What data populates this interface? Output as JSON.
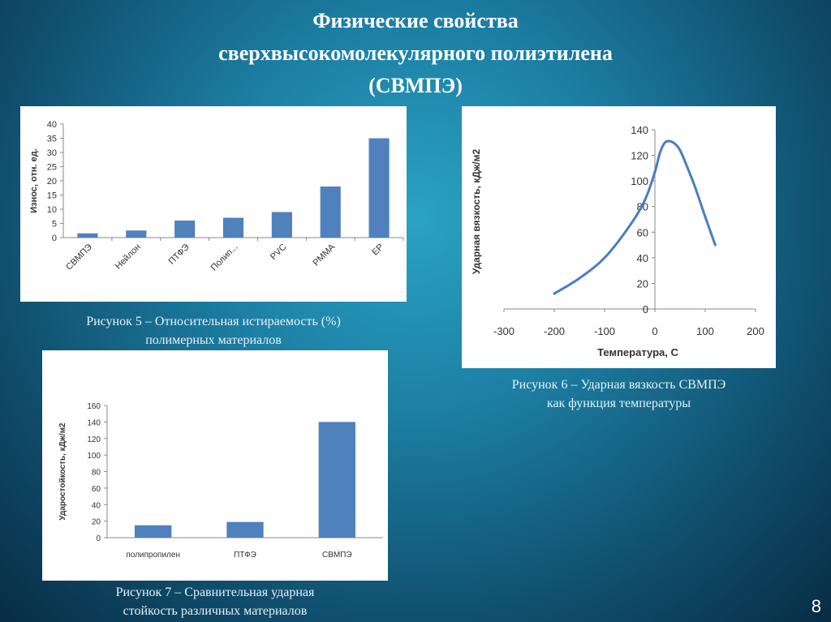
{
  "slide": {
    "title_lines": [
      "Физические свойства",
      "сверхвысокомолекулярного полиэтилена",
      "(СВМПЭ)"
    ],
    "page_number": "8"
  },
  "colors": {
    "bar": "#4f81bd",
    "line": "#4a7ebb",
    "axis": "#888888"
  },
  "captions": {
    "fig5": [
      "Рисунок 5 – Относительная истираемость (%)",
      "полимерных материалов"
    ],
    "fig6": [
      "Рисунок 6 – Ударная вязкость СВМПЭ",
      "как функция температуры"
    ],
    "fig7": [
      "Рисунок 7 – Сравнительная ударная",
      "стойкость различных материалов"
    ]
  },
  "chart_data": [
    {
      "id": "fig5",
      "type": "bar",
      "ylabel": "Износ, отн. ед.",
      "categories": [
        "СВМПЭ",
        "Нейлон",
        "ПТФЭ",
        "Полип...",
        "PVC",
        "PMMA",
        "EP"
      ],
      "values": [
        1.5,
        2.5,
        6,
        7,
        9,
        18,
        35
      ],
      "ylim": [
        0,
        40
      ],
      "yticks": [
        0,
        5,
        10,
        15,
        20,
        25,
        30,
        35,
        40
      ],
      "grid": false
    },
    {
      "id": "fig6",
      "type": "line",
      "xlabel": "Температура, С",
      "ylabel": "Ударная вязкость, кДж/м2",
      "xlim": [
        -300,
        200
      ],
      "ylim": [
        0,
        140
      ],
      "xticks": [
        -300,
        -200,
        -100,
        0,
        100,
        200
      ],
      "yticks": [
        0,
        20,
        40,
        60,
        80,
        100,
        120,
        140
      ],
      "x": [
        -200,
        -150,
        -100,
        -50,
        -20,
        0,
        10,
        20,
        30,
        40,
        50,
        60,
        80,
        100,
        120
      ],
      "y": [
        12,
        24,
        40,
        65,
        85,
        107,
        122,
        130,
        131,
        129,
        124,
        115,
        95,
        72,
        50
      ],
      "grid": false
    },
    {
      "id": "fig7",
      "type": "bar",
      "ylabel": "Ударостойкость, кДж/м2",
      "categories": [
        "полипропилен",
        "ПТФЭ",
        "СВМПЭ"
      ],
      "values": [
        15,
        19,
        140
      ],
      "ylim": [
        0,
        160
      ],
      "yticks": [
        0,
        20,
        40,
        60,
        80,
        100,
        120,
        140,
        160
      ],
      "grid": false
    }
  ]
}
